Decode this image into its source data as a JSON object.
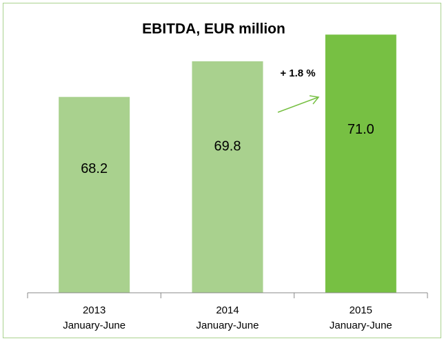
{
  "chart_data": {
    "type": "bar",
    "title": "EBITDA, EUR million",
    "categories": [
      "2013",
      "2014",
      "2015"
    ],
    "period_labels": [
      "January-June",
      "January-June",
      "January-June"
    ],
    "values": [
      68.2,
      69.8,
      71.0
    ],
    "value_labels": [
      "68.2",
      "69.8",
      "71.0"
    ],
    "colors": [
      "#a9d18e",
      "#a9d18e",
      "#77c043"
    ],
    "annotation": "+ 1.8 %",
    "ylim": [
      59.4,
      72.4
    ]
  }
}
